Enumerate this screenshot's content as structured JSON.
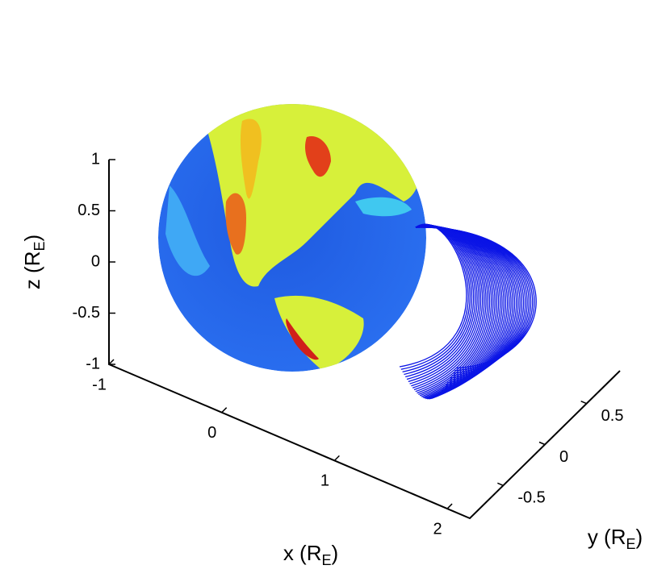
{
  "chart_data": {
    "type": "line3d",
    "xlabel": {
      "main": "x (R",
      "sub": "E",
      "close": ")"
    },
    "ylabel": {
      "main": "y (R",
      "sub": "E",
      "close": ")"
    },
    "zlabel": {
      "main": "z (R",
      "sub": "E",
      "close": ")"
    },
    "xlim": [
      -1,
      2.2
    ],
    "xticks": [
      -1,
      0,
      1,
      2
    ],
    "ylim": [
      -0.9,
      0.9
    ],
    "yticks": [
      -0.5,
      0,
      0.5
    ],
    "zlim": [
      -1,
      1
    ],
    "zticks": [
      -1,
      -0.5,
      0,
      0.5,
      1
    ]
  }
}
